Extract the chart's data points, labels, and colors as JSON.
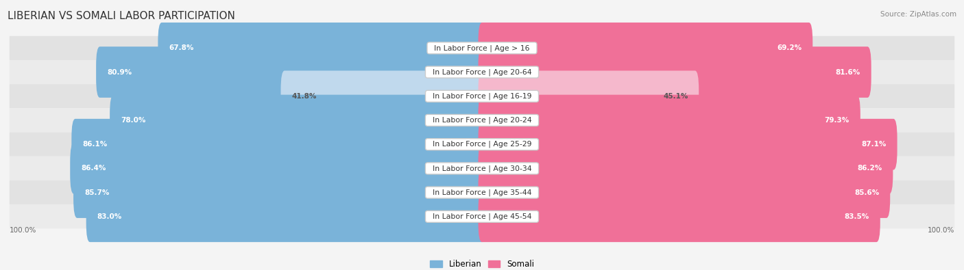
{
  "title": "LIBERIAN VS SOMALI LABOR PARTICIPATION",
  "source": "Source: ZipAtlas.com",
  "categories": [
    "In Labor Force | Age > 16",
    "In Labor Force | Age 20-64",
    "In Labor Force | Age 16-19",
    "In Labor Force | Age 20-24",
    "In Labor Force | Age 25-29",
    "In Labor Force | Age 30-34",
    "In Labor Force | Age 35-44",
    "In Labor Force | Age 45-54"
  ],
  "liberian": [
    67.8,
    80.9,
    41.8,
    78.0,
    86.1,
    86.4,
    85.7,
    83.0
  ],
  "somali": [
    69.2,
    81.6,
    45.1,
    79.3,
    87.1,
    86.2,
    85.6,
    83.5
  ],
  "liberian_color": "#7ab3d9",
  "liberian_color_light": "#c0d9ed",
  "somali_color": "#f07098",
  "somali_color_light": "#f5b8cc",
  "bg_color": "#f4f4f4",
  "row_bg_dark": "#e2e2e2",
  "row_bg_light": "#ebebeb",
  "bar_height": 0.52,
  "max_value": 100.0,
  "title_fontsize": 11,
  "label_fontsize": 7.8,
  "value_fontsize": 7.5,
  "source_fontsize": 7.5,
  "legend_fontsize": 8.5,
  "axis_label": "100.0%"
}
